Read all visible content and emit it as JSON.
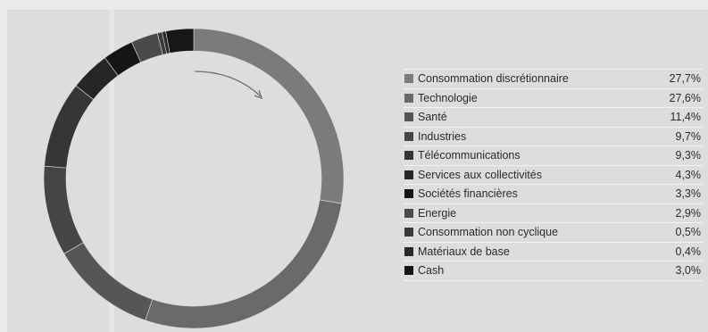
{
  "chart_data": {
    "type": "pie",
    "style": "donut",
    "legend_position": "right",
    "categories": [
      "Consommation discrétionnaire",
      "Technologie",
      "Santé",
      "Industries",
      "Télécommunications",
      "Services aux collectivités",
      "Sociétés financières",
      "Energie",
      "Consommation non cyclique",
      "Matériaux de base",
      "Cash"
    ],
    "values": [
      27.7,
      27.6,
      11.4,
      9.7,
      9.3,
      4.3,
      3.3,
      2.9,
      0.5,
      0.4,
      3.0
    ],
    "value_labels": [
      "27,7%",
      "27,6%",
      "11,4%",
      "9,7%",
      "9,3%",
      "4,3%",
      "3,3%",
      "2,9%",
      "0,5%",
      "0,4%",
      "3,0%"
    ],
    "colors": [
      "#7b7b7b",
      "#6a6a6a",
      "#565656",
      "#454545",
      "#363636",
      "#262626",
      "#151515",
      "#4a4a4a",
      "#393939",
      "#282828",
      "#171717"
    ],
    "annotation": "clockwise-arrow"
  }
}
